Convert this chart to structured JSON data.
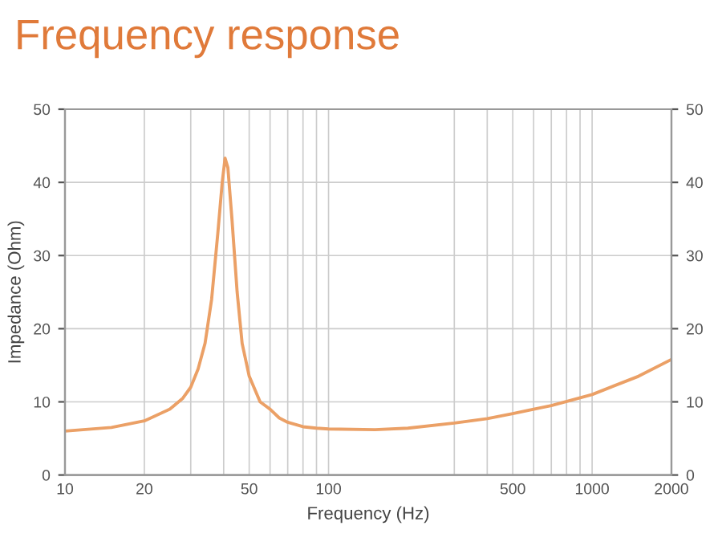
{
  "chart_data": {
    "type": "line",
    "title": "Frequency response",
    "xlabel": "Frequency (Hz)",
    "ylabel": "Impedance (Ohm)",
    "x": [
      10,
      15,
      20,
      25,
      28,
      30,
      32,
      34,
      36,
      38,
      39.5,
      40.5,
      41.5,
      43,
      45,
      47,
      50,
      55,
      60,
      65,
      70,
      80,
      90,
      100,
      150,
      200,
      300,
      400,
      500,
      700,
      1000,
      1500,
      2000
    ],
    "series": [
      {
        "color": "#eba066",
        "values": [
          6.0,
          6.5,
          7.4,
          9.0,
          10.5,
          12,
          14.5,
          18,
          24,
          33,
          40,
          43.3,
          42,
          35,
          25,
          18,
          13.5,
          10,
          9,
          7.8,
          7.2,
          6.6,
          6.4,
          6.3,
          6.2,
          6.4,
          7.1,
          7.7,
          8.4,
          9.5,
          11,
          13.5,
          15.8
        ]
      }
    ],
    "log": "x",
    "xlim": [
      10,
      2000
    ],
    "xticks": [
      10,
      20,
      {
        "value": 30,
        "label": null
      },
      {
        "value": 40,
        "label": null
      },
      50,
      {
        "value": 60,
        "label": null
      },
      {
        "value": 70,
        "label": null
      },
      {
        "value": 80,
        "label": null
      },
      {
        "value": 90,
        "label": null
      },
      100,
      {
        "value": 300,
        "label": null
      },
      {
        "value": 400,
        "label": null
      },
      500,
      {
        "value": 600,
        "label": null
      },
      {
        "value": 700,
        "label": null
      },
      {
        "value": 800,
        "label": null
      },
      {
        "value": 900,
        "label": null
      },
      1000,
      2000
    ],
    "ylim": [
      0,
      50
    ],
    "yticks": [
      0,
      10,
      20,
      30,
      40,
      50
    ],
    "y2lim": [
      0,
      50
    ],
    "y2ticks": [
      0,
      10,
      20,
      30,
      40,
      50
    ],
    "grid": true,
    "marker": "none",
    "line_style": "solid"
  }
}
